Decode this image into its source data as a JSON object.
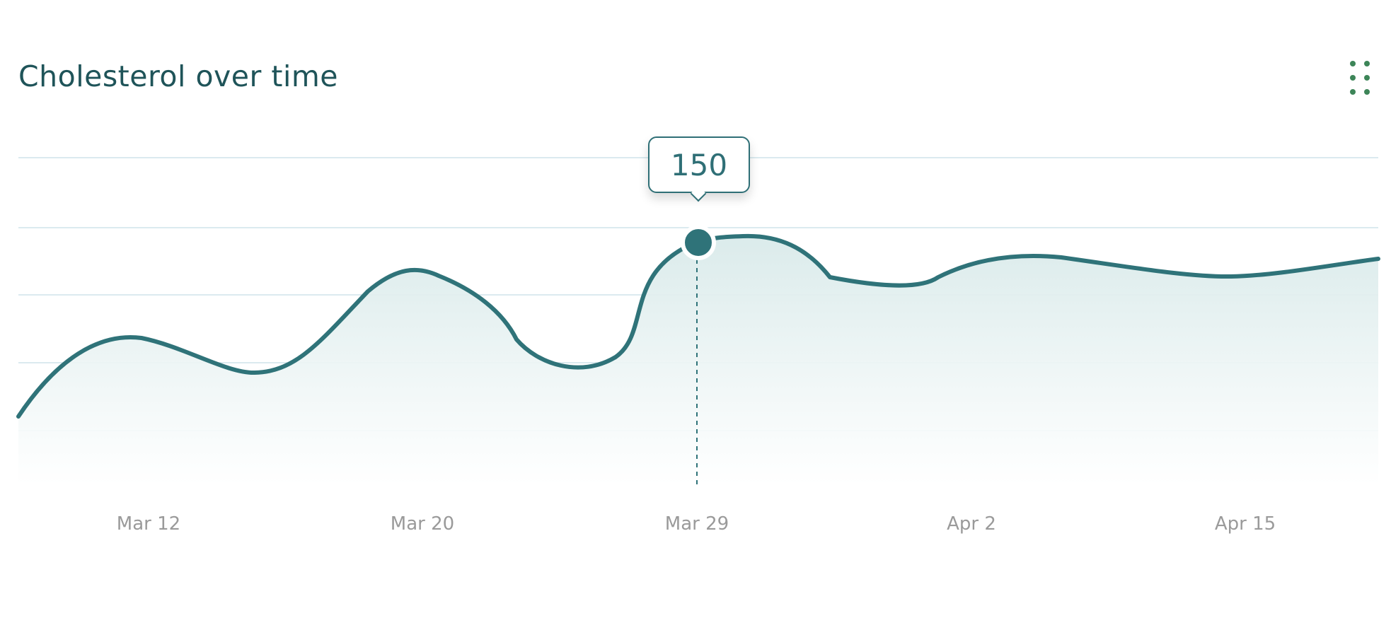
{
  "chart_data": {
    "type": "area",
    "title": "Cholesterol over time",
    "x": [
      "Mar 12",
      "Mar 20",
      "Mar 29",
      "Apr 2",
      "Apr 15"
    ],
    "tick_labels": [
      "Mar 12",
      "Mar 20",
      "Mar 29",
      "Apr 2",
      "Apr 15"
    ],
    "series": [
      {
        "values": [
          138,
          141,
          150,
          145,
          147
        ],
        "color": "#2f7379"
      }
    ],
    "highlight": {
      "x": "Mar 29",
      "value": "150"
    },
    "grid": true,
    "colors": {
      "line": "#2f7379",
      "fill": "#dfeeee",
      "grid": "#cfe4ea",
      "menu": "#3d8558"
    }
  },
  "header": {
    "menu_icon": "drag-dots-icon"
  }
}
